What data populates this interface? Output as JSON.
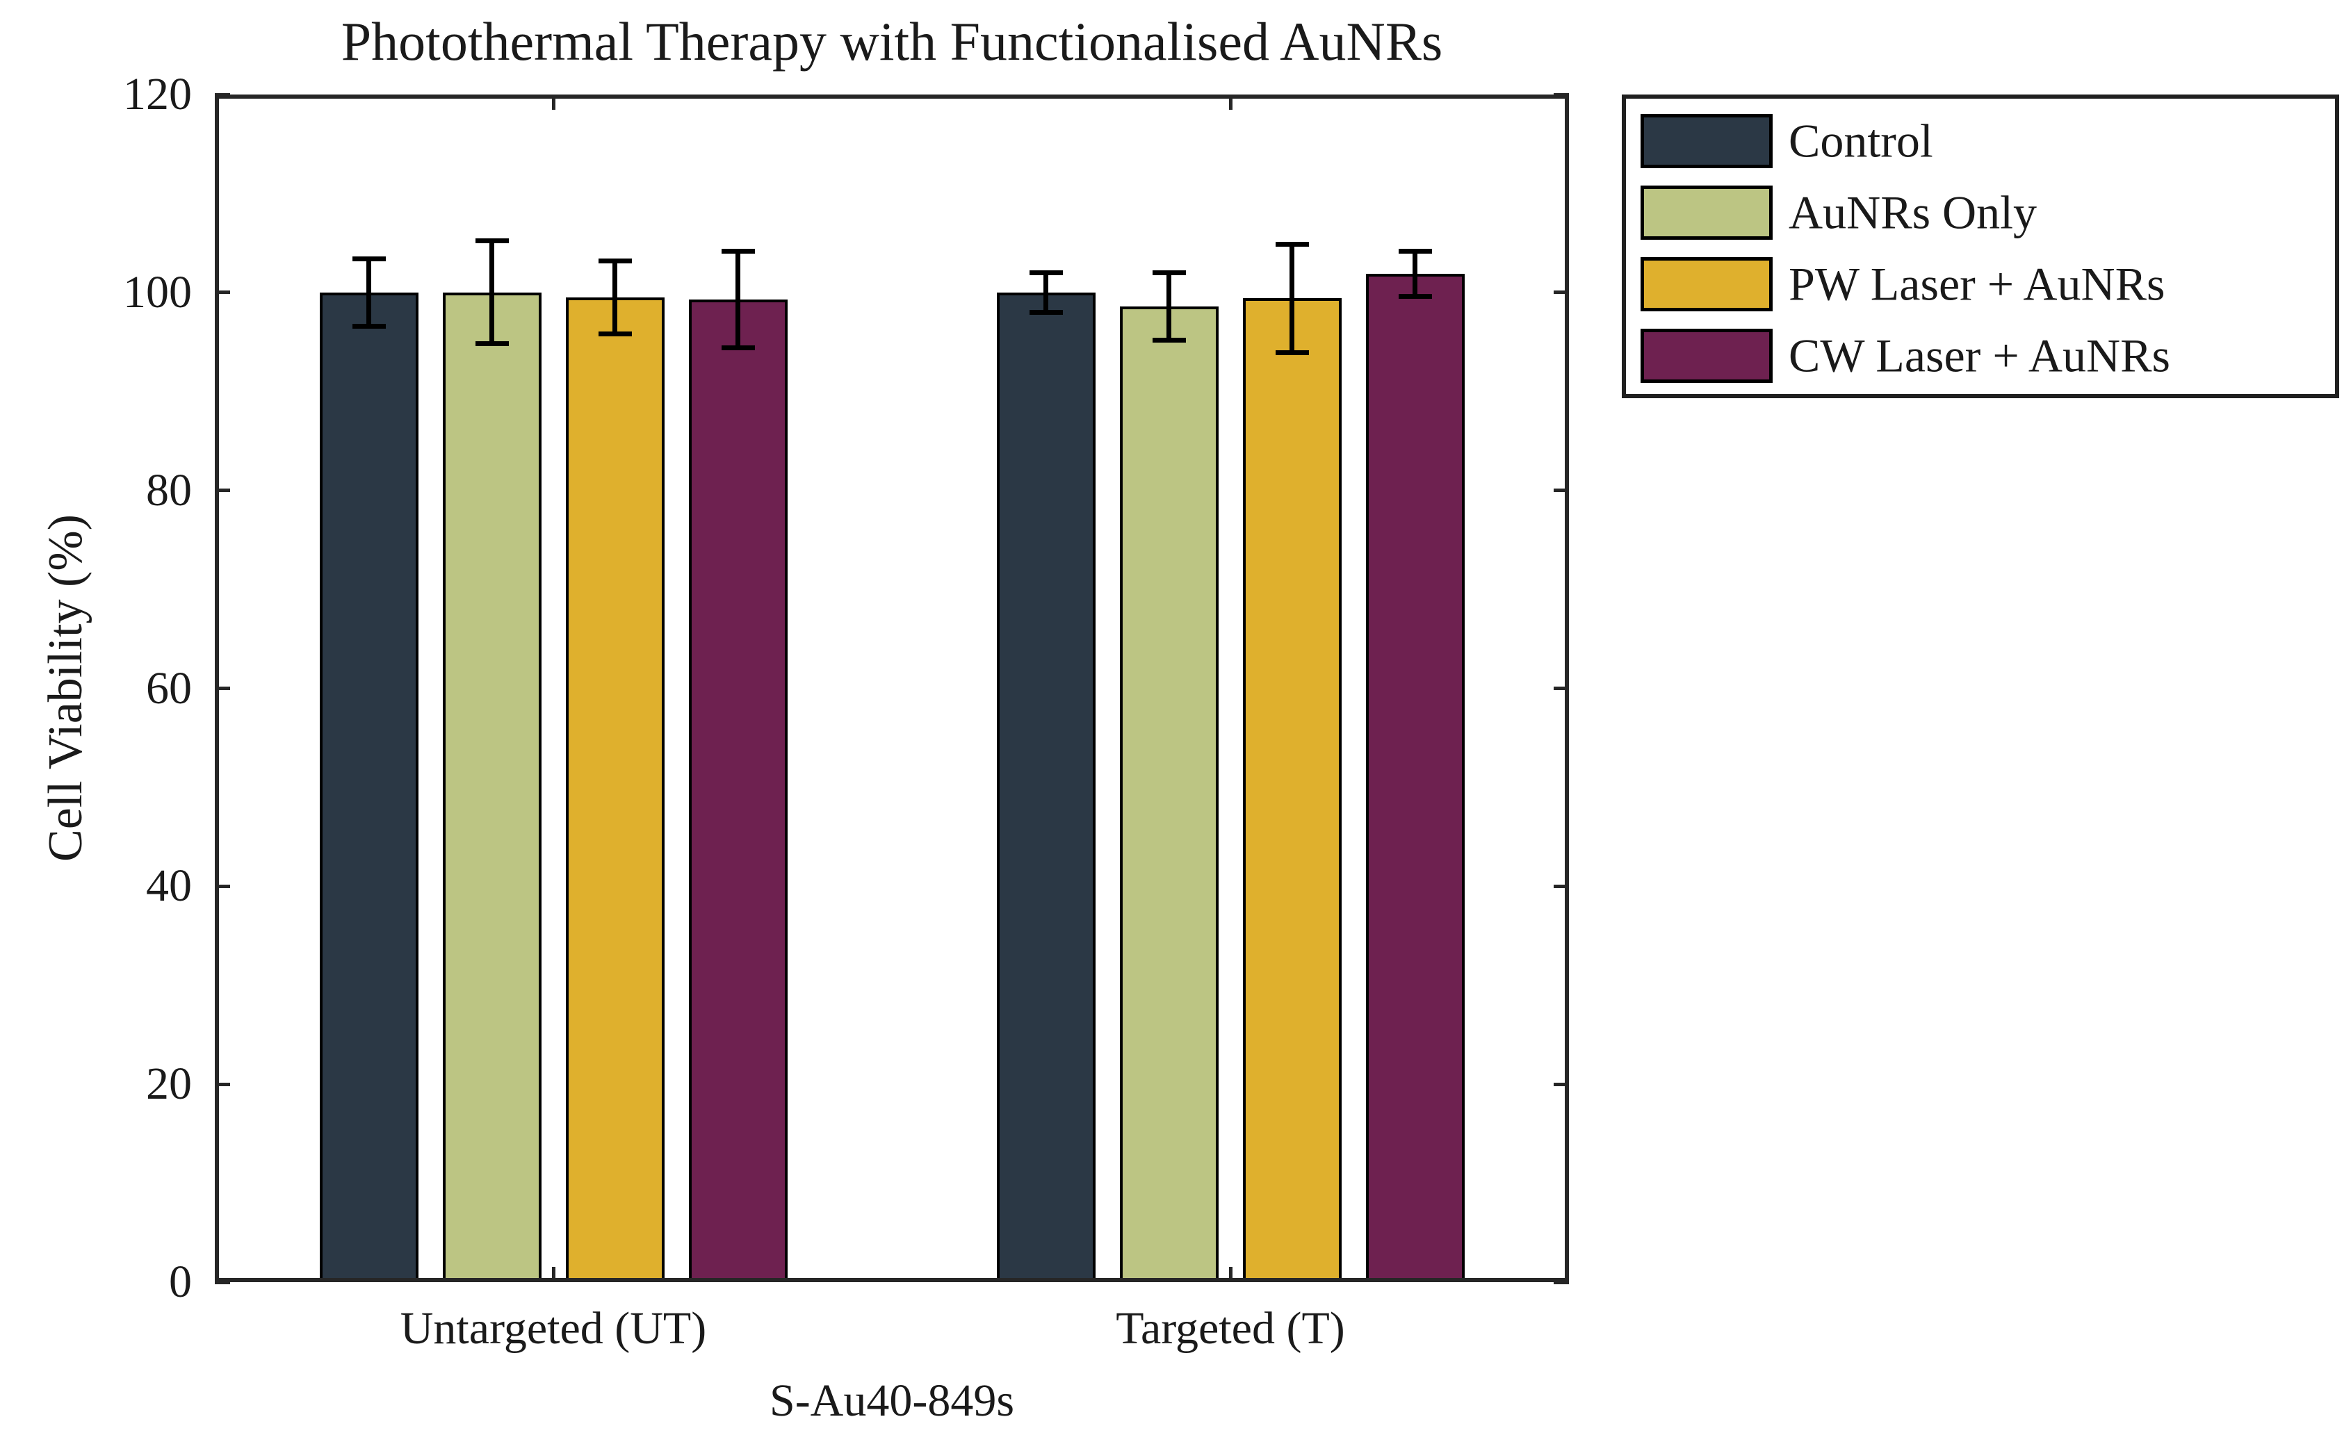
{
  "figure": {
    "title": "Photothermal Therapy with Functionalised AuNRs",
    "ylabel": "Cell Viability (%)",
    "xlabel": "S-Au40-849s"
  },
  "chart_data": {
    "type": "bar",
    "title": "Photothermal Therapy with Functionalised AuNRs",
    "xlabel": "S-Au40-849s",
    "ylabel": "Cell Viability (%)",
    "ylim": [
      0,
      120
    ],
    "yticks": [
      0,
      20,
      40,
      60,
      80,
      100,
      120
    ],
    "categories": [
      "Untargeted (UT)",
      "Targeted (T)"
    ],
    "series": [
      {
        "name": "Control",
        "color": "#2b3845",
        "values": [
          100.0,
          100.0
        ],
        "errors": [
          3.4,
          2.0
        ]
      },
      {
        "name": "AuNRs Only",
        "color": "#bcc583",
        "values": [
          100.0,
          98.6
        ],
        "errors": [
          5.2,
          3.4
        ]
      },
      {
        "name": "PW Laser + AuNRs",
        "color": "#dfb02d",
        "values": [
          99.5,
          99.4
        ],
        "errors": [
          3.7,
          5.5
        ]
      },
      {
        "name": "CW Laser + AuNRs",
        "color": "#6e2150",
        "values": [
          99.3,
          101.9
        ],
        "errors": [
          4.9,
          2.3
        ]
      }
    ],
    "grid": false,
    "legend_position": "outside-upper-right",
    "bar_edge_color": "#000000",
    "error_bar_color": "#000000",
    "axis_color": "#262626"
  }
}
